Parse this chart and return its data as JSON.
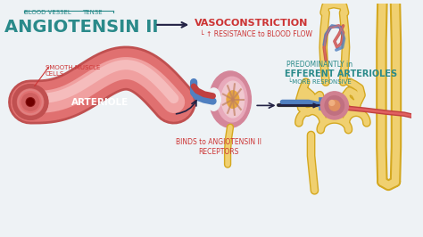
{
  "bg_color": "#eef2f5",
  "title_text": "ANGIOTENSIN II",
  "blood_vessel_label": "BLOOD VESSEL",
  "tense_label": "TENSE",
  "vasoconstriction_text": "VASOCONSTRICTION",
  "resistance_text": "└ ↑ RESISTANCE to BLOOD FLOW",
  "arteriole_label": "ARTERIOLE",
  "smooth_muscle_label": "SMOOTH MUSCLE\nCELLS",
  "binds_label": "BINDS to ANGIOTENSIN II\nRECEPTORS",
  "predominantly_label": "PREDOMINANTLY in",
  "efferent_label": "EFFERENT ARTERIOLES",
  "more_responsive_label": "└MORE RESPONSIVE",
  "tube_outer": "#e07070",
  "tube_mid": "#f0a0a0",
  "tube_highlight": "#f8c8c8",
  "tube_dark": "#c04040",
  "tube_core": "#8B1515",
  "kidney_outer": "#d4869a",
  "kidney_mid": "#e8aabb",
  "kidney_inner_bg": "#f0c8d0",
  "kidney_detail": "#c090a8",
  "kidney_orange": "#e8a840",
  "kidney_yellow": "#f0c860",
  "yellow_tube": "#f0d070",
  "yellow_outline": "#d4a820",
  "blue_vessel": "#5080c0",
  "red_vessel": "#c04040",
  "pink_vessel": "#e08080",
  "arrow_dark": "#222244",
  "red_text": "#cc3333",
  "teal_text": "#2a8a8a",
  "white": "#ffffff"
}
